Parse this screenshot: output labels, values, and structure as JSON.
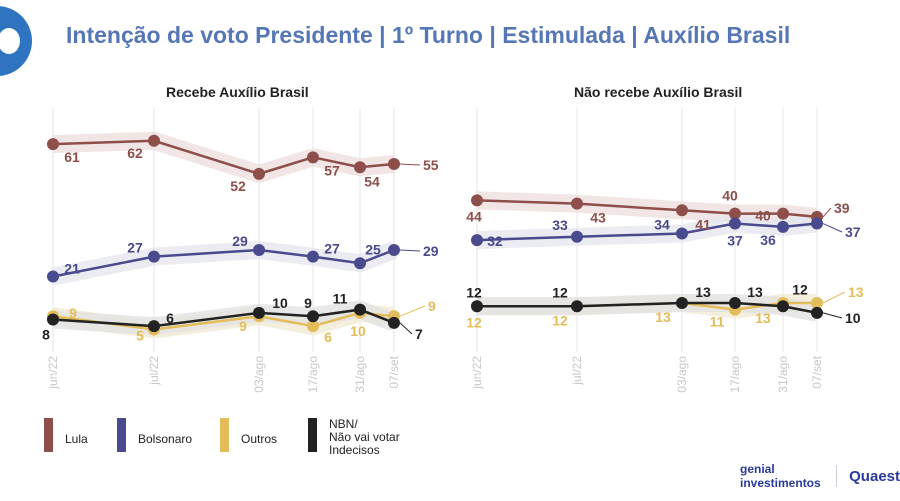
{
  "title": "Intenção de voto Presidente | 1º Turno | Estimulada | Auxílio Brasil",
  "chart_data": [
    {
      "type": "line",
      "title": "Recebe Auxílio Brasil",
      "categories": [
        "jun/22",
        "jul/22",
        "03/ago",
        "17/ago",
        "31/ago",
        "07/set"
      ],
      "series": [
        {
          "name": "Lula",
          "color": "#8e4f4b",
          "values": [
            61,
            62,
            52,
            57,
            54,
            55
          ]
        },
        {
          "name": "Bolsonaro",
          "color": "#4a4a8e",
          "values": [
            21,
            27,
            29,
            27,
            25,
            29
          ]
        },
        {
          "name": "Outros",
          "color": "#e2bd5a",
          "values": [
            9,
            5,
            9,
            6,
            10,
            9
          ]
        },
        {
          "name": "NBN/ Não vai votar Indecisos",
          "color": "#222222",
          "values": [
            8,
            6,
            10,
            9,
            11,
            7
          ]
        }
      ]
    },
    {
      "type": "line",
      "title": "Não recebe Auxílio Brasil",
      "categories": [
        "jun/22",
        "jul/22",
        "03/ago",
        "17/ago",
        "31/ago",
        "07/set"
      ],
      "series": [
        {
          "name": "Lula",
          "color": "#8e4f4b",
          "values": [
            44,
            43,
            41,
            40,
            40,
            39
          ]
        },
        {
          "name": "Bolsonaro",
          "color": "#4a4a8e",
          "values": [
            32,
            33,
            34,
            37,
            36,
            37
          ]
        },
        {
          "name": "Outros",
          "color": "#e2bd5a",
          "values": [
            12,
            12,
            13,
            11,
            13,
            13
          ]
        },
        {
          "name": "NBN/ Não vai votar Indecisos",
          "color": "#222222",
          "values": [
            12,
            12,
            13,
            13,
            12,
            10
          ]
        }
      ]
    }
  ],
  "legend": [
    {
      "label": "Lula",
      "color": "#8e4f4b"
    },
    {
      "label": "Bolsonaro",
      "color": "#4a4a8e"
    },
    {
      "label": "Outros",
      "color": "#e2bd5a"
    },
    {
      "label": "NBN/\nNão vai votar\nIndecisos",
      "color": "#222222"
    }
  ],
  "logos": {
    "genial": "genial investimentos",
    "quaest": "Quaest"
  }
}
